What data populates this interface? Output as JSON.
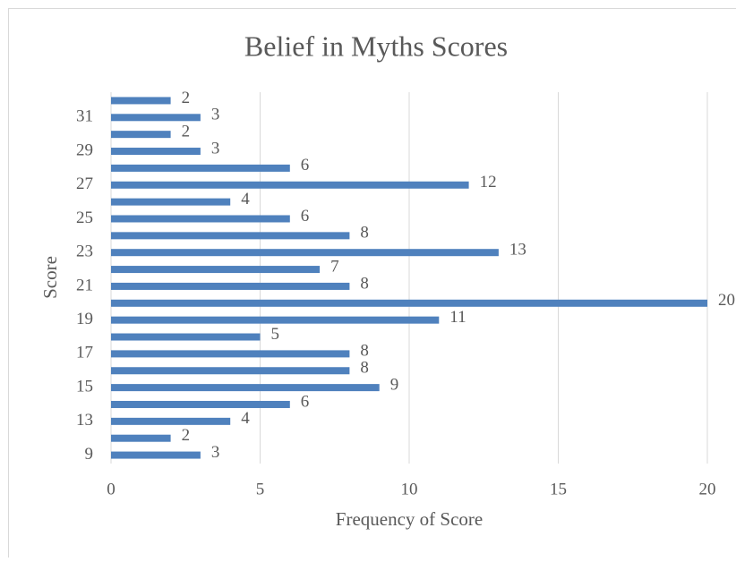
{
  "chart_data": {
    "type": "barh",
    "title": "Belief in Myths Scores",
    "x_label": "Frequency of Score",
    "y_label": "Score",
    "categories": [
      9,
      null,
      13,
      null,
      15,
      null,
      17,
      null,
      19,
      null,
      21,
      null,
      23,
      null,
      25,
      null,
      27,
      null,
      29,
      null,
      31,
      null
    ],
    "values": [
      3,
      2,
      4,
      6,
      9,
      8,
      8,
      5,
      11,
      20,
      8,
      7,
      13,
      8,
      6,
      4,
      12,
      6,
      3,
      2,
      3,
      2
    ],
    "color": "#4f81bd",
    "xlim": [
      0,
      20
    ],
    "xticks": [
      0,
      5,
      10,
      15,
      20
    ],
    "grid": true
  }
}
